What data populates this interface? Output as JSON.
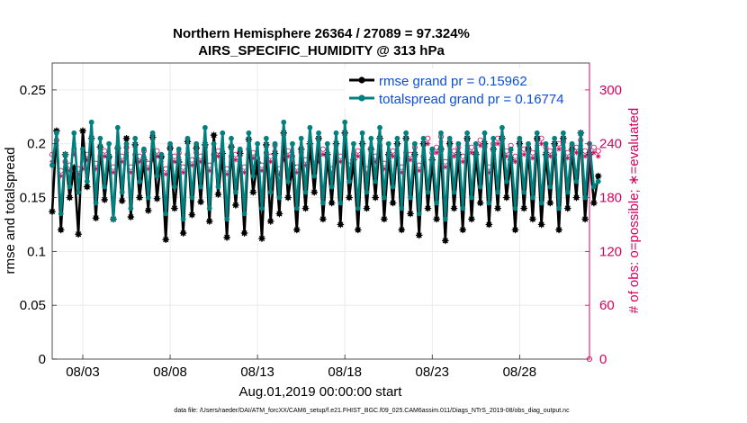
{
  "chart_data": {
    "type": "line",
    "title_line1": "Northern Hemisphere 26364 / 27089 = 97.324%",
    "title_line2": "AIRS_SPECIFIC_HUMIDITY @ 313 hPa",
    "xlabel": "Aug.01,2019 00:00:00 start",
    "ylabel_left": "rmse and totalspread",
    "ylabel_right": "# of obs: o=possible; ∗=evaluated",
    "x_range_days": [
      1.25,
      32.0
    ],
    "ylim_left": [
      0,
      0.275
    ],
    "ylim_right": [
      0,
      330
    ],
    "x_ticks": [
      {
        "day": 3,
        "label": "08/03"
      },
      {
        "day": 8,
        "label": "08/08"
      },
      {
        "day": 13,
        "label": "08/13"
      },
      {
        "day": 18,
        "label": "08/18"
      },
      {
        "day": 23,
        "label": "08/23"
      },
      {
        "day": 28,
        "label": "08/28"
      }
    ],
    "y_ticks_left": [
      "0",
      "0.05",
      "0.1",
      "0.15",
      "0.2",
      "0.25"
    ],
    "y_tick_values_left": [
      0,
      0.05,
      0.1,
      0.15,
      0.2,
      0.25
    ],
    "y_ticks_right": [
      "0",
      "60",
      "120",
      "180",
      "240",
      "300"
    ],
    "y_tick_values_right": [
      0,
      60,
      120,
      180,
      240,
      300
    ],
    "grid": true,
    "legend_position": "top-right",
    "colors": {
      "rmse": "#000000",
      "spread": "#00807f",
      "obs": "#d6005c",
      "legend_text": "#0b4fd6"
    },
    "x_start_day": 1.25,
    "x_step_days": 0.25,
    "series": [
      {
        "name": "rmse grand pr = 0.15962",
        "values": [
          0.137,
          0.212,
          0.12,
          0.19,
          0.15,
          0.178,
          0.116,
          0.212,
          0.16,
          0.205,
          0.131,
          0.197,
          0.148,
          0.188,
          0.13,
          0.196,
          0.147,
          0.205,
          0.132,
          0.199,
          0.15,
          0.185,
          0.138,
          0.206,
          0.149,
          0.188,
          0.111,
          0.196,
          0.14,
          0.183,
          0.117,
          0.202,
          0.134,
          0.196,
          0.146,
          0.199,
          0.128,
          0.208,
          0.153,
          0.191,
          0.113,
          0.197,
          0.143,
          0.191,
          0.117,
          0.204,
          0.155,
          0.183,
          0.112,
          0.199,
          0.128,
          0.191,
          0.135,
          0.21,
          0.15,
          0.18,
          0.12,
          0.195,
          0.14,
          0.2,
          0.155,
          0.205,
          0.13,
          0.19,
          0.145,
          0.2,
          0.125,
          0.21,
          0.15,
          0.185,
          0.12,
          0.2,
          0.14,
          0.195,
          0.15,
          0.205,
          0.13,
          0.19,
          0.145,
          0.2,
          0.12,
          0.205,
          0.135,
          0.19,
          0.115,
          0.2,
          0.14,
          0.185,
          0.13,
          0.195,
          0.11,
          0.2,
          0.14,
          0.19,
          0.12,
          0.205,
          0.13,
          0.19,
          0.145,
          0.2,
          0.125,
          0.195,
          0.14,
          0.205,
          0.15,
          0.185,
          0.12,
          0.2,
          0.14,
          0.195,
          0.13,
          0.205,
          0.125,
          0.19,
          0.145,
          0.2,
          0.12,
          0.205,
          0.14,
          0.195,
          0.15,
          0.21,
          0.13,
          0.19,
          0.145,
          0.17
        ]
      },
      {
        "name": "totalspread grand pr = 0.16774",
        "values": [
          0.18,
          0.21,
          0.135,
          0.19,
          0.16,
          0.21,
          0.155,
          0.195,
          0.165,
          0.22,
          0.145,
          0.205,
          0.16,
          0.2,
          0.13,
          0.215,
          0.155,
          0.2,
          0.14,
          0.205,
          0.165,
          0.195,
          0.15,
          0.21,
          0.17,
          0.19,
          0.135,
          0.2,
          0.16,
          0.195,
          0.13,
          0.205,
          0.15,
          0.2,
          0.16,
          0.215,
          0.14,
          0.2,
          0.16,
          0.21,
          0.13,
          0.205,
          0.155,
          0.195,
          0.135,
          0.21,
          0.17,
          0.2,
          0.14,
          0.205,
          0.155,
          0.2,
          0.15,
          0.22,
          0.165,
          0.2,
          0.14,
          0.205,
          0.155,
          0.215,
          0.17,
          0.21,
          0.145,
          0.2,
          0.16,
          0.21,
          0.145,
          0.22,
          0.165,
          0.2,
          0.14,
          0.21,
          0.155,
          0.205,
          0.165,
          0.215,
          0.15,
          0.2,
          0.16,
          0.205,
          0.14,
          0.21,
          0.15,
          0.2,
          0.135,
          0.205,
          0.155,
          0.195,
          0.145,
          0.21,
          0.13,
          0.205,
          0.155,
          0.2,
          0.14,
          0.21,
          0.15,
          0.2,
          0.16,
          0.21,
          0.145,
          0.205,
          0.155,
          0.215,
          0.165,
          0.195,
          0.14,
          0.205,
          0.155,
          0.2,
          0.15,
          0.21,
          0.145,
          0.2,
          0.16,
          0.205,
          0.14,
          0.21,
          0.155,
          0.2,
          0.165,
          0.21,
          0.15,
          0.2,
          0.16,
          0.165
        ]
      },
      {
        "name": "possible",
        "axis": "right",
        "marker": "o",
        "values": [
          228,
          244,
          210,
          220,
          216,
          234,
          212,
          218,
          228,
          236,
          218,
          226,
          232,
          224,
          214,
          230,
          226,
          236,
          214,
          228,
          226,
          232,
          218,
          228,
          232,
          226,
          212,
          234,
          226,
          230,
          214,
          228,
          222,
          230,
          226,
          236,
          216,
          228,
          232,
          224,
          212,
          226,
          228,
          232,
          214,
          234,
          230,
          224,
          216,
          230,
          226,
          238,
          212,
          228,
          232,
          226,
          214,
          230,
          222,
          236,
          218,
          226,
          234,
          224,
          212,
          230,
          226,
          232,
          216,
          228,
          232,
          226,
          212,
          234,
          226,
          238,
          218,
          228,
          232,
          224,
          214,
          230,
          228,
          236,
          216,
          226,
          246,
          230,
          236,
          248,
          220,
          242,
          232,
          236,
          226,
          244,
          236,
          230,
          244,
          236,
          214,
          240,
          246,
          234,
          232,
          238,
          226,
          242,
          234,
          236,
          230,
          244,
          246,
          236,
          232,
          228,
          240,
          242,
          230,
          238,
          236,
          244,
          232,
          228,
          236,
          232
        ]
      },
      {
        "name": "evaluated",
        "axis": "right",
        "marker": "*",
        "values": [
          220,
          238,
          204,
          214,
          210,
          228,
          206,
          212,
          222,
          230,
          212,
          220,
          226,
          218,
          208,
          224,
          220,
          230,
          208,
          222,
          220,
          226,
          212,
          222,
          226,
          220,
          206,
          228,
          220,
          224,
          208,
          222,
          216,
          224,
          220,
          230,
          210,
          222,
          226,
          218,
          206,
          220,
          222,
          226,
          208,
          228,
          224,
          218,
          210,
          224,
          220,
          232,
          206,
          222,
          226,
          220,
          208,
          224,
          216,
          230,
          212,
          220,
          228,
          218,
          206,
          224,
          220,
          226,
          210,
          222,
          226,
          220,
          206,
          228,
          220,
          232,
          212,
          222,
          226,
          218,
          208,
          224,
          222,
          230,
          210,
          220,
          240,
          224,
          230,
          242,
          214,
          236,
          226,
          230,
          220,
          238,
          230,
          224,
          238,
          230,
          208,
          234,
          240,
          228,
          226,
          232,
          220,
          236,
          228,
          230,
          224,
          238,
          240,
          230,
          226,
          222,
          234,
          236,
          224,
          232,
          230,
          238,
          226,
          222,
          230,
          226
        ]
      }
    ]
  },
  "footer": {
    "data_file": "data file: /Users/raeder/DAI/ATM_forcXX/CAM6_setup/f.e21.FHIST_BGC.f09_025.CAM6assim.011/Diags_NTrS_2019-08/obs_diag_output.nc"
  }
}
